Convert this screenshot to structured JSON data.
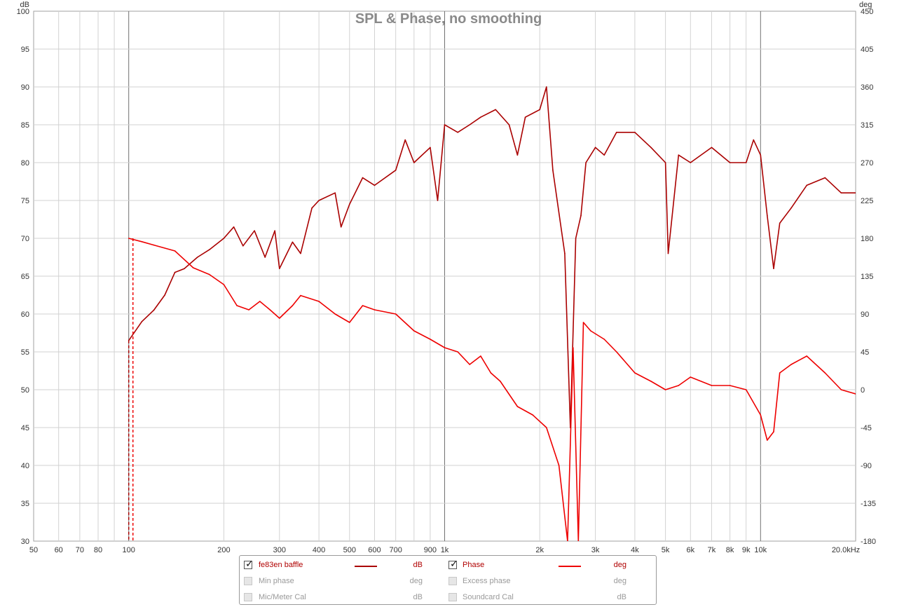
{
  "chart_data": {
    "type": "line",
    "title": "SPL & Phase, no smoothing",
    "x_scale": "log",
    "xlim": [
      50,
      20000
    ],
    "x_ticks": [
      50,
      60,
      70,
      80,
      100,
      200,
      300,
      400,
      500,
      600,
      700,
      900,
      1000,
      2000,
      3000,
      4000,
      5000,
      6000,
      7000,
      8000,
      9000,
      10000,
      20000
    ],
    "x_tick_labels": [
      "50",
      "60",
      "70",
      "80",
      "100",
      "200",
      "300",
      "400",
      "500",
      "600",
      "700",
      "900",
      "1k",
      "2k",
      "3k",
      "4k",
      "5k",
      "6k",
      "7k",
      "8k",
      "9k",
      "10k",
      "20.0kHz"
    ],
    "left_axis": {
      "unit": "dB",
      "ylim": [
        30,
        100
      ],
      "ticks": [
        30,
        35,
        40,
        45,
        50,
        55,
        60,
        65,
        70,
        75,
        80,
        85,
        90,
        95,
        100
      ]
    },
    "right_axis": {
      "unit": "deg",
      "ylim": [
        -180,
        450
      ],
      "ticks": [
        -180,
        -135,
        -90,
        -45,
        0,
        45,
        90,
        135,
        180,
        225,
        270,
        315,
        360,
        405,
        450
      ]
    },
    "grid": true,
    "series": [
      {
        "name": "fe83en baffle",
        "axis": "left",
        "color": "#aa0000",
        "points": [
          [
            100,
            56.5
          ],
          [
            110,
            59
          ],
          [
            120,
            60.5
          ],
          [
            130,
            62.5
          ],
          [
            140,
            65.5
          ],
          [
            150,
            66
          ],
          [
            165,
            67.5
          ],
          [
            180,
            68.5
          ],
          [
            200,
            70
          ],
          [
            215,
            71.5
          ],
          [
            230,
            69
          ],
          [
            250,
            71
          ],
          [
            270,
            67.5
          ],
          [
            290,
            71
          ],
          [
            300,
            66
          ],
          [
            330,
            69.5
          ],
          [
            350,
            68
          ],
          [
            380,
            74
          ],
          [
            400,
            75
          ],
          [
            450,
            76
          ],
          [
            470,
            71.5
          ],
          [
            500,
            74.5
          ],
          [
            550,
            78
          ],
          [
            600,
            77
          ],
          [
            700,
            79
          ],
          [
            750,
            83
          ],
          [
            800,
            80
          ],
          [
            900,
            82
          ],
          [
            950,
            75
          ],
          [
            1000,
            85
          ],
          [
            1100,
            84
          ],
          [
            1200,
            85
          ],
          [
            1300,
            86
          ],
          [
            1450,
            87
          ],
          [
            1600,
            85
          ],
          [
            1700,
            81
          ],
          [
            1800,
            86
          ],
          [
            2000,
            87
          ],
          [
            2100,
            90
          ],
          [
            2200,
            79
          ],
          [
            2400,
            68
          ],
          [
            2500,
            45
          ],
          [
            2600,
            70
          ],
          [
            2700,
            73
          ],
          [
            2800,
            80
          ],
          [
            3000,
            82
          ],
          [
            3200,
            81
          ],
          [
            3500,
            84
          ],
          [
            4000,
            84
          ],
          [
            4500,
            82
          ],
          [
            5000,
            80
          ],
          [
            5100,
            68
          ],
          [
            5500,
            81
          ],
          [
            6000,
            80
          ],
          [
            7000,
            82
          ],
          [
            8000,
            80
          ],
          [
            9000,
            80
          ],
          [
            9500,
            83
          ],
          [
            10000,
            81
          ],
          [
            10500,
            73
          ],
          [
            11000,
            66
          ],
          [
            11500,
            72
          ],
          [
            12500,
            74
          ],
          [
            14000,
            77
          ],
          [
            16000,
            78
          ],
          [
            18000,
            76
          ],
          [
            20000,
            76
          ]
        ]
      },
      {
        "name": "Phase",
        "axis": "right",
        "color": "#ee0000",
        "points": [
          [
            100,
            180
          ],
          [
            110,
            176
          ],
          [
            120,
            172
          ],
          [
            140,
            165
          ],
          [
            160,
            145
          ],
          [
            180,
            137
          ],
          [
            200,
            125
          ],
          [
            220,
            100
          ],
          [
            240,
            95
          ],
          [
            260,
            105
          ],
          [
            280,
            95
          ],
          [
            300,
            85
          ],
          [
            330,
            100
          ],
          [
            350,
            112
          ],
          [
            400,
            105
          ],
          [
            450,
            90
          ],
          [
            500,
            80
          ],
          [
            550,
            100
          ],
          [
            600,
            95
          ],
          [
            700,
            90
          ],
          [
            800,
            70
          ],
          [
            900,
            60
          ],
          [
            1000,
            50
          ],
          [
            1100,
            45
          ],
          [
            1200,
            30
          ],
          [
            1300,
            40
          ],
          [
            1400,
            20
          ],
          [
            1500,
            10
          ],
          [
            1700,
            -20
          ],
          [
            1900,
            -30
          ],
          [
            2100,
            -45
          ],
          [
            2300,
            -90
          ],
          [
            2450,
            -180
          ],
          [
            2550,
            50
          ],
          [
            2650,
            -180
          ],
          [
            2750,
            80
          ],
          [
            2900,
            70
          ],
          [
            3200,
            60
          ],
          [
            3500,
            45
          ],
          [
            4000,
            20
          ],
          [
            4500,
            10
          ],
          [
            5000,
            0
          ],
          [
            5500,
            5
          ],
          [
            6000,
            15
          ],
          [
            7000,
            5
          ],
          [
            8000,
            5
          ],
          [
            9000,
            0
          ],
          [
            10000,
            -30
          ],
          [
            10500,
            -60
          ],
          [
            11000,
            -50
          ],
          [
            11500,
            20
          ],
          [
            12500,
            30
          ],
          [
            14000,
            40
          ],
          [
            16000,
            20
          ],
          [
            18000,
            0
          ],
          [
            20000,
            -5
          ]
        ]
      }
    ]
  },
  "legend": {
    "rows": [
      {
        "label": "fe83en baffle",
        "unit": "dB",
        "checked": true,
        "color": "#aa0000"
      },
      {
        "label": "Phase",
        "unit": "deg",
        "checked": true,
        "color": "#ee0000"
      },
      {
        "label": "Min phase",
        "unit": "deg",
        "checked": false
      },
      {
        "label": "Excess phase",
        "unit": "deg",
        "checked": false
      },
      {
        "label": "Mic/Meter Cal",
        "unit": "dB",
        "checked": false
      },
      {
        "label": "Soundcard Cal",
        "unit": "dB",
        "checked": false
      }
    ]
  }
}
